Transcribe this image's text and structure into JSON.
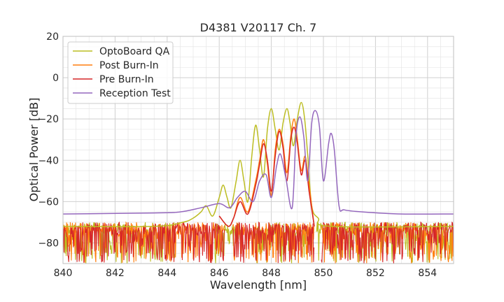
{
  "chart_data": {
    "type": "line",
    "title": "D4381 V20117 Ch. 7",
    "xlabel": "Wavelength [nm]",
    "ylabel": "Optical Power [dB]",
    "xlim": [
      840,
      855
    ],
    "ylim": [
      -90,
      20
    ],
    "xticks": [
      840,
      842,
      844,
      846,
      848,
      850,
      852,
      854
    ],
    "yticks": [
      -80,
      -60,
      -40,
      -20,
      0,
      20
    ],
    "xtick_labels": [
      "840",
      "842",
      "844",
      "846",
      "848",
      "850",
      "852",
      "854"
    ],
    "ytick_labels": [
      "−80",
      "−60",
      "−40",
      "−20",
      "0",
      "20"
    ],
    "grid": true,
    "legend_position": "upper-left",
    "noise_floor_range_db": [
      -90,
      -70
    ],
    "series": [
      {
        "name": "OptoBoard QA",
        "color": "#bcbd22",
        "points": [
          [
            840,
            -72
          ],
          [
            843.5,
            -72
          ],
          [
            844.6,
            -70
          ],
          [
            845.0,
            -68
          ],
          [
            845.3,
            -65
          ],
          [
            845.5,
            -62
          ],
          [
            845.75,
            -67
          ],
          [
            846.0,
            -58
          ],
          [
            846.15,
            -52
          ],
          [
            846.3,
            -58
          ],
          [
            846.45,
            -63
          ],
          [
            846.65,
            -50
          ],
          [
            846.8,
            -40
          ],
          [
            846.95,
            -50
          ],
          [
            847.1,
            -60
          ],
          [
            847.25,
            -38
          ],
          [
            847.4,
            -23
          ],
          [
            847.55,
            -35
          ],
          [
            847.7,
            -48
          ],
          [
            847.85,
            -25
          ],
          [
            848.0,
            -15
          ],
          [
            848.15,
            -25
          ],
          [
            848.3,
            -35
          ],
          [
            848.45,
            -22
          ],
          [
            848.6,
            -15
          ],
          [
            848.72,
            -22
          ],
          [
            848.85,
            -33
          ],
          [
            849.0,
            -20
          ],
          [
            849.15,
            -12
          ],
          [
            849.28,
            -20
          ],
          [
            849.4,
            -38
          ],
          [
            849.55,
            -62
          ],
          [
            849.8,
            -68
          ],
          [
            850.3,
            -72
          ],
          [
            855,
            -72
          ]
        ]
      },
      {
        "name": "Post Burn-In",
        "color": "#ff7f0e",
        "points": [
          [
            846.0,
            -67
          ],
          [
            846.35,
            -72
          ],
          [
            846.55,
            -68
          ],
          [
            846.8,
            -58
          ],
          [
            847.1,
            -65
          ],
          [
            847.4,
            -50
          ],
          [
            847.55,
            -40
          ],
          [
            847.7,
            -30
          ],
          [
            847.85,
            -42
          ],
          [
            848.0,
            -57
          ],
          [
            848.15,
            -35
          ],
          [
            848.3,
            -25
          ],
          [
            848.45,
            -32
          ],
          [
            848.6,
            -46
          ],
          [
            848.75,
            -28
          ],
          [
            848.88,
            -20
          ],
          [
            849.0,
            -30
          ],
          [
            849.15,
            -45
          ],
          [
            849.3,
            -38
          ],
          [
            849.45,
            -52
          ],
          [
            849.65,
            -72
          ]
        ]
      },
      {
        "name": "Pre Burn-In",
        "color": "#d62728",
        "points": [
          [
            846.0,
            -67
          ],
          [
            846.35,
            -72
          ],
          [
            846.55,
            -68
          ],
          [
            846.8,
            -60
          ],
          [
            847.1,
            -66
          ],
          [
            847.4,
            -52
          ],
          [
            847.55,
            -42
          ],
          [
            847.7,
            -32
          ],
          [
            847.85,
            -40
          ],
          [
            848.0,
            -55
          ],
          [
            848.15,
            -38
          ],
          [
            848.3,
            -26
          ],
          [
            848.45,
            -34
          ],
          [
            848.6,
            -50
          ],
          [
            848.75,
            -30
          ],
          [
            848.88,
            -24
          ],
          [
            849.0,
            -32
          ],
          [
            849.15,
            -47
          ],
          [
            849.3,
            -40
          ],
          [
            849.45,
            -55
          ],
          [
            849.65,
            -72
          ]
        ]
      },
      {
        "name": "Reception Test",
        "color": "#9467bd",
        "points": [
          [
            840,
            -66
          ],
          [
            843.5,
            -65.5
          ],
          [
            844.5,
            -65
          ],
          [
            845.3,
            -63
          ],
          [
            846.0,
            -61
          ],
          [
            846.4,
            -63
          ],
          [
            846.7,
            -58
          ],
          [
            847.0,
            -55
          ],
          [
            847.3,
            -60
          ],
          [
            847.55,
            -50
          ],
          [
            847.8,
            -47
          ],
          [
            848.0,
            -58
          ],
          [
            848.2,
            -43
          ],
          [
            848.35,
            -37
          ],
          [
            848.55,
            -48
          ],
          [
            848.8,
            -63
          ],
          [
            848.95,
            -28
          ],
          [
            849.1,
            -19
          ],
          [
            849.25,
            -29
          ],
          [
            849.4,
            -50
          ],
          [
            849.55,
            -22
          ],
          [
            849.7,
            -16
          ],
          [
            849.85,
            -24
          ],
          [
            850.0,
            -50
          ],
          [
            850.2,
            -32
          ],
          [
            850.3,
            -27
          ],
          [
            850.42,
            -35
          ],
          [
            850.6,
            -62
          ],
          [
            850.8,
            -64
          ],
          [
            851.5,
            -65
          ],
          [
            853,
            -66
          ],
          [
            855,
            -66
          ]
        ]
      }
    ]
  }
}
